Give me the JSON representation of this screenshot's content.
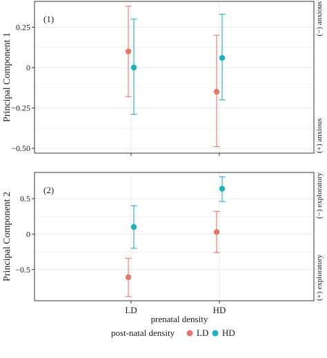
{
  "colors": {
    "LD": "#E8756A",
    "HD": "#1AB3B8",
    "frame": "#333333",
    "grid": "#EBEBEB"
  },
  "chart_data": [
    {
      "type": "errorbar",
      "panel_label": "(1)",
      "ylabel": "Principal Component 1",
      "right_top_label": "(−) anxious",
      "right_bottom_label": "(+) anxious",
      "categories": [
        "LD",
        "HD"
      ],
      "ylim": [
        -0.53,
        0.41
      ],
      "yticks": [
        0.25,
        0,
        -0.25,
        -0.5
      ],
      "ytick_labels": [
        "0.25",
        "0",
        "−0.25",
        "−0.50"
      ],
      "grid": true,
      "series": [
        {
          "name": "LD",
          "points": [
            {
              "category": "LD",
              "y": 0.1,
              "lower": -0.18,
              "upper": 0.38
            },
            {
              "category": "HD",
              "y": -0.15,
              "lower": -0.49,
              "upper": 0.2
            }
          ]
        },
        {
          "name": "HD",
          "points": [
            {
              "category": "LD",
              "y": 0.0,
              "lower": -0.29,
              "upper": 0.3
            },
            {
              "category": "HD",
              "y": 0.06,
              "lower": -0.2,
              "upper": 0.33
            }
          ]
        }
      ]
    },
    {
      "type": "errorbar",
      "panel_label": "(2)",
      "ylabel": "Principal Component 2",
      "right_top_label": "(−) exploratory",
      "right_bottom_label": "(+) exploratory",
      "categories": [
        "LD",
        "HD"
      ],
      "ylim": [
        -0.94,
        0.87
      ],
      "yticks": [
        0.5,
        0,
        -0.5
      ],
      "ytick_labels": [
        "0.5",
        "0",
        "−0.5"
      ],
      "grid": true,
      "series": [
        {
          "name": "LD",
          "points": [
            {
              "category": "LD",
              "y": -0.61,
              "lower": -0.88,
              "upper": -0.34
            },
            {
              "category": "HD",
              "y": 0.03,
              "lower": -0.26,
              "upper": 0.32
            }
          ]
        },
        {
          "name": "HD",
          "points": [
            {
              "category": "LD",
              "y": 0.1,
              "lower": -0.2,
              "upper": 0.4
            },
            {
              "category": "HD",
              "y": 0.64,
              "lower": 0.46,
              "upper": 0.81
            }
          ]
        }
      ]
    }
  ],
  "xlabel": "prenatal density",
  "legend": {
    "title": "post-natal density",
    "items": [
      "LD",
      "HD"
    ],
    "position": "bottom"
  }
}
